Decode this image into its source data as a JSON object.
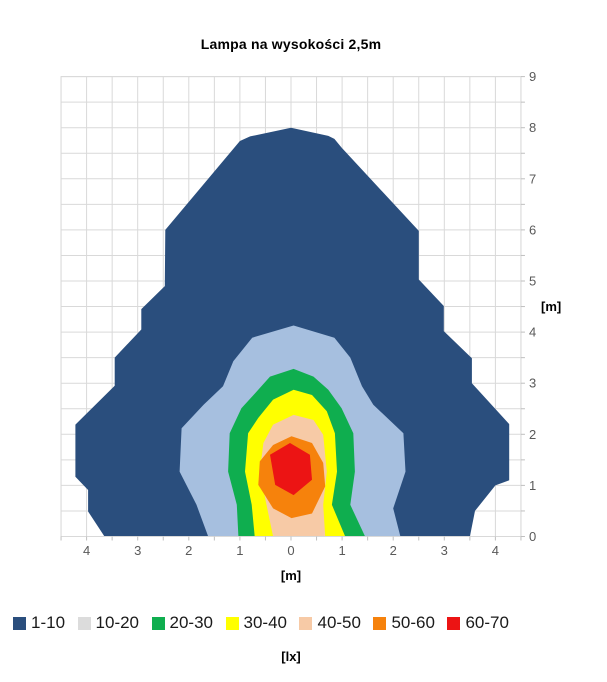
{
  "chart_data": {
    "type": "contour",
    "title": "Lampa na wysokości 2,5m",
    "x_axis": {
      "unit": "[m]",
      "min": -4.5,
      "max": 4.5,
      "grid_step": 0.5,
      "tick_step": 0.5,
      "label_values": [
        -4,
        -3,
        -2,
        -1,
        0,
        1,
        2,
        3,
        4
      ],
      "tick_labels": [
        "4",
        "3",
        "2",
        "1",
        "0",
        "1",
        "2",
        "3",
        "4"
      ]
    },
    "y_axis": {
      "unit": "[m]",
      "min": 0,
      "max": 9,
      "grid_step": 0.5,
      "tick_step": 0.5,
      "label_values": [
        0,
        1,
        2,
        3,
        4,
        5,
        6,
        7,
        8,
        9
      ],
      "tick_labels": [
        "0",
        "1",
        "2",
        "3",
        "4",
        "5",
        "6",
        "7",
        "8",
        "9"
      ]
    },
    "legend_unit": "[lx]",
    "grid_color": "#D9D9D9",
    "tick_color": "#BFBFBF",
    "tick_label_color": "#595959",
    "levels": [
      {
        "label": "1-10",
        "fill": "#2A4E7D",
        "legend_swatch": "#2A4E7D"
      },
      {
        "label": "10-20",
        "fill": "#A6BFDF",
        "legend_swatch": "#DCDCDC"
      },
      {
        "label": "20-30",
        "fill": "#0FAE4F",
        "legend_swatch": "#0FAE4F"
      },
      {
        "label": "30-40",
        "fill": "#FFFF00",
        "legend_swatch": "#FFFF00"
      },
      {
        "label": "40-50",
        "fill": "#F7CAA6",
        "legend_swatch": "#F7CAA6"
      },
      {
        "label": "50-60",
        "fill": "#F6820C",
        "legend_swatch": "#F6820C"
      },
      {
        "label": "60-70",
        "fill": "#EC1414",
        "legend_swatch": "#EC1414"
      }
    ],
    "regions": [
      {
        "level": "1-10",
        "points": [
          [
            -3.65,
            0
          ],
          [
            -3.97,
            0.49
          ],
          [
            -3.97,
            0.91
          ],
          [
            -4.22,
            1.17
          ],
          [
            -4.22,
            2.19
          ],
          [
            -3.45,
            2.95
          ],
          [
            -3.45,
            3.5
          ],
          [
            -2.93,
            4.05
          ],
          [
            -2.93,
            4.45
          ],
          [
            -2.47,
            4.9
          ],
          [
            -2.46,
            6.0
          ],
          [
            -1.0,
            7.74
          ],
          [
            -0.8,
            7.83
          ],
          [
            0.0,
            8.0
          ],
          [
            0.73,
            7.84
          ],
          [
            0.85,
            7.78
          ],
          [
            0.99,
            7.61
          ],
          [
            2.5,
            5.98
          ],
          [
            2.5,
            5.03
          ],
          [
            2.99,
            4.51
          ],
          [
            2.99,
            4.02
          ],
          [
            3.54,
            3.49
          ],
          [
            3.54,
            3.0
          ],
          [
            4.27,
            2.2
          ],
          [
            4.27,
            1.1
          ],
          [
            4.0,
            1.0
          ],
          [
            3.6,
            0.5
          ],
          [
            3.5,
            0
          ]
        ]
      },
      {
        "level": "10-20",
        "points": [
          [
            -1.62,
            0
          ],
          [
            -1.85,
            0.62
          ],
          [
            -2.18,
            1.27
          ],
          [
            -2.14,
            2.12
          ],
          [
            -1.71,
            2.58
          ],
          [
            -1.33,
            2.94
          ],
          [
            -1.13,
            3.43
          ],
          [
            -0.76,
            3.89
          ],
          [
            0.05,
            4.13
          ],
          [
            0.85,
            3.89
          ],
          [
            1.16,
            3.5
          ],
          [
            1.39,
            2.94
          ],
          [
            1.61,
            2.58
          ],
          [
            2.2,
            2.02
          ],
          [
            2.24,
            1.27
          ],
          [
            2.0,
            0.55
          ],
          [
            2.14,
            0
          ]
        ]
      },
      {
        "level": "20-30",
        "points": [
          [
            -1.03,
            0
          ],
          [
            -1.06,
            0.62
          ],
          [
            -1.23,
            1.27
          ],
          [
            -1.2,
            2.02
          ],
          [
            -0.97,
            2.51
          ],
          [
            -0.67,
            2.84
          ],
          [
            -0.41,
            3.13
          ],
          [
            0.05,
            3.28
          ],
          [
            0.44,
            3.13
          ],
          [
            0.73,
            2.87
          ],
          [
            0.99,
            2.51
          ],
          [
            1.22,
            2.02
          ],
          [
            1.25,
            1.27
          ],
          [
            1.16,
            0.62
          ],
          [
            1.45,
            0
          ]
        ]
      },
      {
        "level": "30-40",
        "points": [
          [
            -0.71,
            0
          ],
          [
            -0.77,
            0.62
          ],
          [
            -0.9,
            1.27
          ],
          [
            -0.84,
            2.02
          ],
          [
            -0.64,
            2.32
          ],
          [
            -0.35,
            2.68
          ],
          [
            0.05,
            2.87
          ],
          [
            0.41,
            2.77
          ],
          [
            0.7,
            2.45
          ],
          [
            0.86,
            2.02
          ],
          [
            0.9,
            1.27
          ],
          [
            0.8,
            0.62
          ],
          [
            1.06,
            0
          ]
        ]
      },
      {
        "level": "40-50",
        "points": [
          [
            -0.35,
            0
          ],
          [
            -0.48,
            0.62
          ],
          [
            -0.61,
            1.27
          ],
          [
            -0.54,
            1.83
          ],
          [
            -0.35,
            2.19
          ],
          [
            0.05,
            2.38
          ],
          [
            0.44,
            2.28
          ],
          [
            0.63,
            1.99
          ],
          [
            0.7,
            1.27
          ],
          [
            0.63,
            0.62
          ],
          [
            0.67,
            0
          ]
        ]
      },
      {
        "level": "50-60",
        "points": [
          [
            0.01,
            0.36
          ],
          [
            -0.35,
            0.55
          ],
          [
            -0.64,
            1.01
          ],
          [
            -0.61,
            1.47
          ],
          [
            -0.35,
            1.79
          ],
          [
            0.01,
            1.96
          ],
          [
            0.41,
            1.83
          ],
          [
            0.63,
            1.44
          ],
          [
            0.67,
            0.98
          ],
          [
            0.41,
            0.45
          ]
        ]
      },
      {
        "level": "60-70",
        "points": [
          [
            0.05,
            0.81
          ],
          [
            -0.31,
            1.01
          ],
          [
            -0.41,
            1.6
          ],
          [
            -0.02,
            1.83
          ],
          [
            0.37,
            1.6
          ],
          [
            0.41,
            1.11
          ]
        ]
      }
    ]
  }
}
